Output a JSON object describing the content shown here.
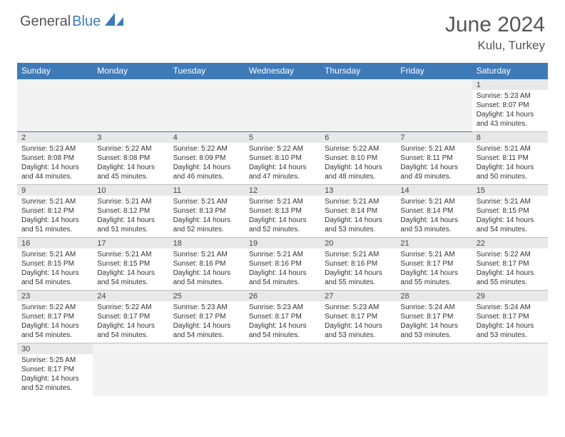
{
  "logo": {
    "part1": "General",
    "part2": "Blue"
  },
  "title": "June 2024",
  "location": "Kulu, Turkey",
  "colors": {
    "header_bg": "#3f7ab8",
    "header_text": "#ffffff",
    "daynum_bg": "#e8e8e8",
    "page_bg": "#ffffff",
    "text": "#333333",
    "border_week": "#3f7ab8"
  },
  "weekdays": [
    "Sunday",
    "Monday",
    "Tuesday",
    "Wednesday",
    "Thursday",
    "Friday",
    "Saturday"
  ],
  "first_weekday_index": 6,
  "days": [
    {
      "n": 1,
      "sunrise": "5:23 AM",
      "sunset": "8:07 PM",
      "day_h": 14,
      "day_m": 43
    },
    {
      "n": 2,
      "sunrise": "5:23 AM",
      "sunset": "8:08 PM",
      "day_h": 14,
      "day_m": 44
    },
    {
      "n": 3,
      "sunrise": "5:22 AM",
      "sunset": "8:08 PM",
      "day_h": 14,
      "day_m": 45
    },
    {
      "n": 4,
      "sunrise": "5:22 AM",
      "sunset": "8:09 PM",
      "day_h": 14,
      "day_m": 46
    },
    {
      "n": 5,
      "sunrise": "5:22 AM",
      "sunset": "8:10 PM",
      "day_h": 14,
      "day_m": 47
    },
    {
      "n": 6,
      "sunrise": "5:22 AM",
      "sunset": "8:10 PM",
      "day_h": 14,
      "day_m": 48
    },
    {
      "n": 7,
      "sunrise": "5:21 AM",
      "sunset": "8:11 PM",
      "day_h": 14,
      "day_m": 49
    },
    {
      "n": 8,
      "sunrise": "5:21 AM",
      "sunset": "8:11 PM",
      "day_h": 14,
      "day_m": 50
    },
    {
      "n": 9,
      "sunrise": "5:21 AM",
      "sunset": "8:12 PM",
      "day_h": 14,
      "day_m": 51
    },
    {
      "n": 10,
      "sunrise": "5:21 AM",
      "sunset": "8:12 PM",
      "day_h": 14,
      "day_m": 51
    },
    {
      "n": 11,
      "sunrise": "5:21 AM",
      "sunset": "8:13 PM",
      "day_h": 14,
      "day_m": 52
    },
    {
      "n": 12,
      "sunrise": "5:21 AM",
      "sunset": "8:13 PM",
      "day_h": 14,
      "day_m": 52
    },
    {
      "n": 13,
      "sunrise": "5:21 AM",
      "sunset": "8:14 PM",
      "day_h": 14,
      "day_m": 53
    },
    {
      "n": 14,
      "sunrise": "5:21 AM",
      "sunset": "8:14 PM",
      "day_h": 14,
      "day_m": 53
    },
    {
      "n": 15,
      "sunrise": "5:21 AM",
      "sunset": "8:15 PM",
      "day_h": 14,
      "day_m": 54
    },
    {
      "n": 16,
      "sunrise": "5:21 AM",
      "sunset": "8:15 PM",
      "day_h": 14,
      "day_m": 54
    },
    {
      "n": 17,
      "sunrise": "5:21 AM",
      "sunset": "8:15 PM",
      "day_h": 14,
      "day_m": 54
    },
    {
      "n": 18,
      "sunrise": "5:21 AM",
      "sunset": "8:16 PM",
      "day_h": 14,
      "day_m": 54
    },
    {
      "n": 19,
      "sunrise": "5:21 AM",
      "sunset": "8:16 PM",
      "day_h": 14,
      "day_m": 54
    },
    {
      "n": 20,
      "sunrise": "5:21 AM",
      "sunset": "8:16 PM",
      "day_h": 14,
      "day_m": 55
    },
    {
      "n": 21,
      "sunrise": "5:21 AM",
      "sunset": "8:17 PM",
      "day_h": 14,
      "day_m": 55
    },
    {
      "n": 22,
      "sunrise": "5:22 AM",
      "sunset": "8:17 PM",
      "day_h": 14,
      "day_m": 55
    },
    {
      "n": 23,
      "sunrise": "5:22 AM",
      "sunset": "8:17 PM",
      "day_h": 14,
      "day_m": 54
    },
    {
      "n": 24,
      "sunrise": "5:22 AM",
      "sunset": "8:17 PM",
      "day_h": 14,
      "day_m": 54
    },
    {
      "n": 25,
      "sunrise": "5:23 AM",
      "sunset": "8:17 PM",
      "day_h": 14,
      "day_m": 54
    },
    {
      "n": 26,
      "sunrise": "5:23 AM",
      "sunset": "8:17 PM",
      "day_h": 14,
      "day_m": 54
    },
    {
      "n": 27,
      "sunrise": "5:23 AM",
      "sunset": "8:17 PM",
      "day_h": 14,
      "day_m": 53
    },
    {
      "n": 28,
      "sunrise": "5:24 AM",
      "sunset": "8:17 PM",
      "day_h": 14,
      "day_m": 53
    },
    {
      "n": 29,
      "sunrise": "5:24 AM",
      "sunset": "8:17 PM",
      "day_h": 14,
      "day_m": 53
    },
    {
      "n": 30,
      "sunrise": "5:25 AM",
      "sunset": "8:17 PM",
      "day_h": 14,
      "day_m": 52
    }
  ],
  "labels": {
    "sunrise": "Sunrise:",
    "sunset": "Sunset:",
    "daylight_pre": "Daylight:",
    "hours_word": "hours",
    "and_word": "and",
    "minutes_word": "minutes."
  }
}
